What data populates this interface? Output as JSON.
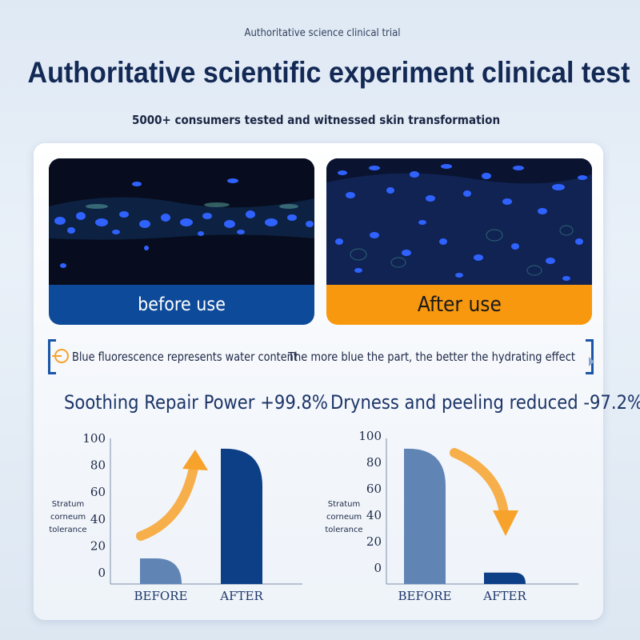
{
  "header": {
    "eyebrow": "Authoritative science clinical trial",
    "title": "Authoritative scientific experiment clinical test",
    "subtitle": "5000+ consumers tested and witnessed skin transformation"
  },
  "comparison": {
    "before_label": "before use",
    "after_label": "After use"
  },
  "note": {
    "icon": "info-icon",
    "text_left": "Blue fluorescence represents water content",
    "text_right": "The more blue the part, the better the hydrating effect"
  },
  "colors": {
    "before_bar": "#0d4a9a",
    "after_bar": "#f7980f",
    "light_bar": "#6085b5",
    "dark_bar": "#0c3f86",
    "arrow": "#f7a22a"
  },
  "chart_data": [
    {
      "type": "bar",
      "title": "Soothing Repair Power +99.8%",
      "ylabel": "Stratum corneum tolerance",
      "ylabel_lines": [
        "Stratum",
        "corneum",
        "tolerance"
      ],
      "categories": [
        "BEFORE",
        "AFTER"
      ],
      "values": [
        18,
        95
      ],
      "yticks": [
        0,
        20,
        40,
        60,
        80,
        100
      ],
      "ylim": [
        0,
        100
      ],
      "trend": "up",
      "grid": false
    },
    {
      "type": "bar",
      "title": "Dryness and peeling reduced -97.2%",
      "ylabel": "Stratum corneum tolerance",
      "ylabel_lines": [
        "Stratum",
        "corneum",
        "tolerance"
      ],
      "categories": [
        "BEFORE",
        "AFTER"
      ],
      "values": [
        95,
        8
      ],
      "yticks": [
        0,
        20,
        40,
        60,
        80,
        100
      ],
      "ylim": [
        0,
        100
      ],
      "trend": "down",
      "grid": false
    }
  ]
}
